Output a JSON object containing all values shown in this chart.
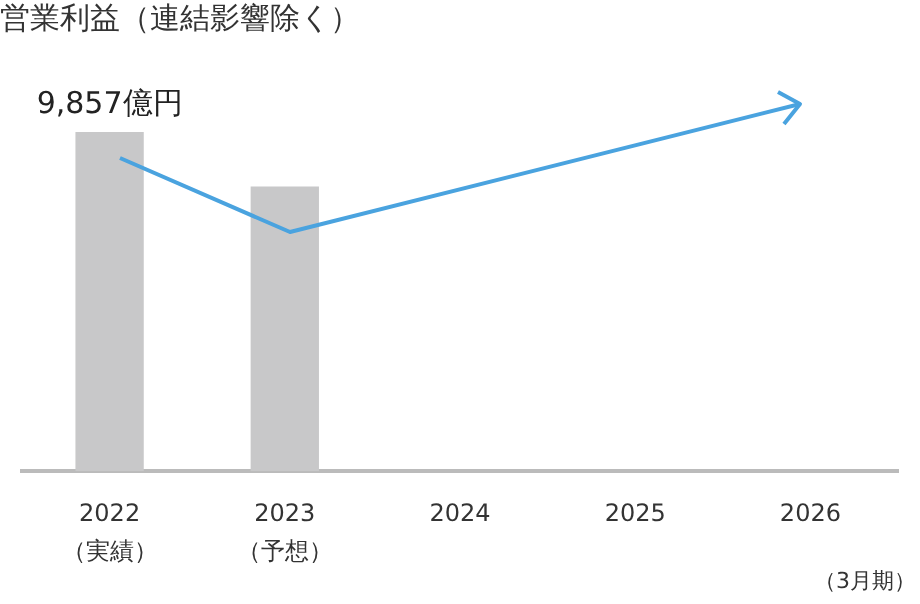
{
  "chart_data": {
    "type": "bar",
    "title": "営業利益（連結影響除く）",
    "categories": [
      "2022\n（実績）",
      "2023\n（予想）",
      "2024",
      "2025",
      "2026"
    ],
    "values": [
      9857,
      8270,
      null,
      null,
      null
    ],
    "color": "#c8c8c9",
    "value_labels": [
      "9,857億円",
      null,
      null,
      null,
      null
    ],
    "annotations": [
      "（3月期）"
    ],
    "grid": false,
    "legend": false,
    "tick_labels": "x"
  }
}
